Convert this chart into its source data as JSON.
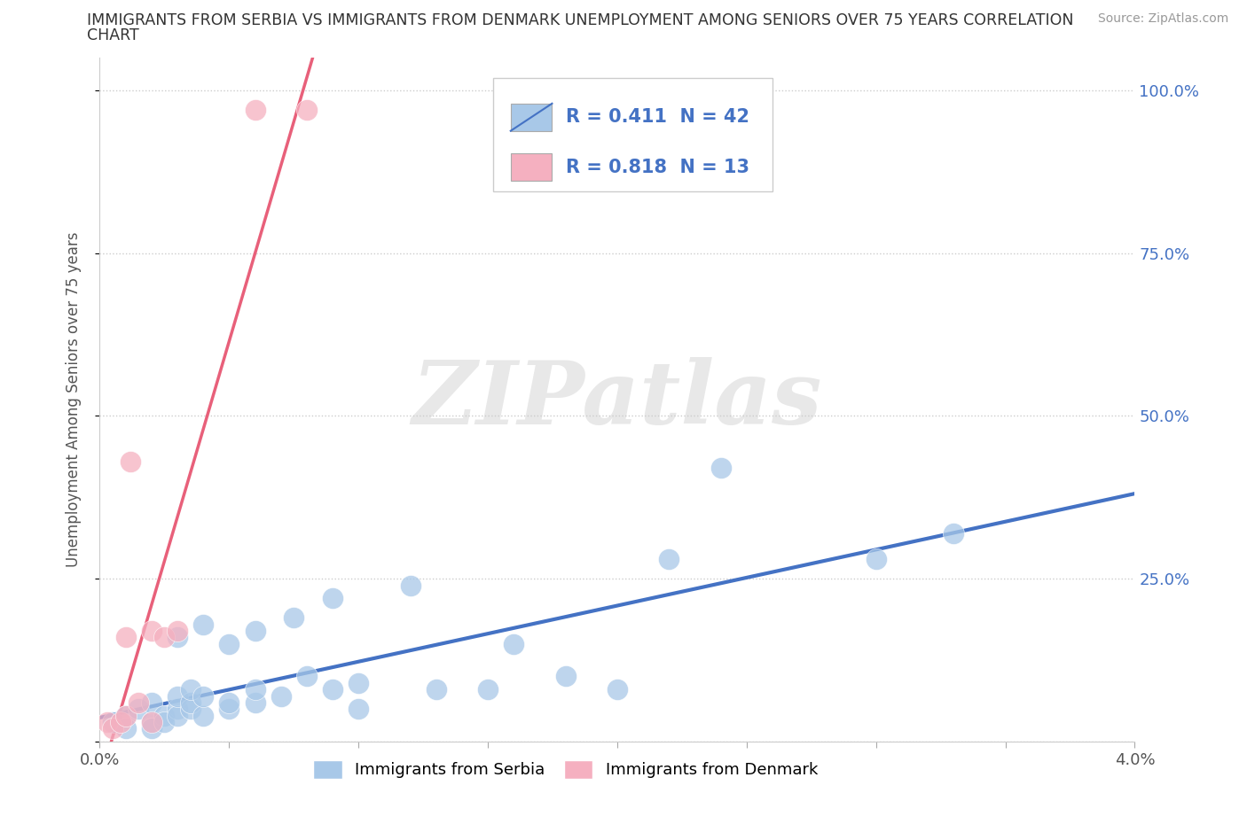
{
  "title_line1": "IMMIGRANTS FROM SERBIA VS IMMIGRANTS FROM DENMARK UNEMPLOYMENT AMONG SENIORS OVER 75 YEARS CORRELATION",
  "title_line2": "CHART",
  "source": "Source: ZipAtlas.com",
  "ylabel": "Unemployment Among Seniors over 75 years",
  "xlim": [
    0.0,
    0.04
  ],
  "ylim": [
    0.0,
    1.05
  ],
  "xticks_major": [
    0.0,
    0.04
  ],
  "xticks_minor": [
    0.005,
    0.01,
    0.015,
    0.02,
    0.025,
    0.03,
    0.035
  ],
  "xtick_labels_major": [
    "0.0%",
    "4.0%"
  ],
  "yticks": [
    0.0,
    0.25,
    0.5,
    0.75,
    1.0
  ],
  "ytick_labels": [
    "",
    "25.0%",
    "50.0%",
    "75.0%",
    "100.0%"
  ],
  "serbia_color": "#A8C8E8",
  "denmark_color": "#F5B0C0",
  "serbia_line_color": "#4472C4",
  "denmark_line_color": "#E8607A",
  "legend_text_color": "#4472C4",
  "R_serbia": 0.411,
  "N_serbia": 42,
  "R_denmark": 0.818,
  "N_denmark": 13,
  "watermark": "ZIPatlas",
  "serbia_scatter": [
    [
      0.0005,
      0.03
    ],
    [
      0.001,
      0.04
    ],
    [
      0.001,
      0.02
    ],
    [
      0.0015,
      0.05
    ],
    [
      0.002,
      0.03
    ],
    [
      0.002,
      0.02
    ],
    [
      0.002,
      0.06
    ],
    [
      0.0025,
      0.04
    ],
    [
      0.0025,
      0.03
    ],
    [
      0.003,
      0.05
    ],
    [
      0.003,
      0.04
    ],
    [
      0.003,
      0.07
    ],
    [
      0.003,
      0.16
    ],
    [
      0.0035,
      0.05
    ],
    [
      0.0035,
      0.06
    ],
    [
      0.0035,
      0.08
    ],
    [
      0.004,
      0.04
    ],
    [
      0.004,
      0.07
    ],
    [
      0.004,
      0.18
    ],
    [
      0.005,
      0.05
    ],
    [
      0.005,
      0.06
    ],
    [
      0.005,
      0.15
    ],
    [
      0.006,
      0.06
    ],
    [
      0.006,
      0.17
    ],
    [
      0.006,
      0.08
    ],
    [
      0.007,
      0.07
    ],
    [
      0.0075,
      0.19
    ],
    [
      0.008,
      0.1
    ],
    [
      0.009,
      0.08
    ],
    [
      0.009,
      0.22
    ],
    [
      0.01,
      0.09
    ],
    [
      0.01,
      0.05
    ],
    [
      0.012,
      0.24
    ],
    [
      0.013,
      0.08
    ],
    [
      0.015,
      0.08
    ],
    [
      0.016,
      0.15
    ],
    [
      0.018,
      0.1
    ],
    [
      0.02,
      0.08
    ],
    [
      0.022,
      0.28
    ],
    [
      0.024,
      0.42
    ],
    [
      0.03,
      0.28
    ],
    [
      0.033,
      0.32
    ]
  ],
  "denmark_scatter": [
    [
      0.0003,
      0.03
    ],
    [
      0.0005,
      0.02
    ],
    [
      0.0008,
      0.03
    ],
    [
      0.001,
      0.04
    ],
    [
      0.001,
      0.16
    ],
    [
      0.0012,
      0.43
    ],
    [
      0.0015,
      0.06
    ],
    [
      0.002,
      0.17
    ],
    [
      0.002,
      0.03
    ],
    [
      0.0025,
      0.16
    ],
    [
      0.003,
      0.17
    ],
    [
      0.006,
      0.97
    ],
    [
      0.008,
      0.97
    ]
  ]
}
